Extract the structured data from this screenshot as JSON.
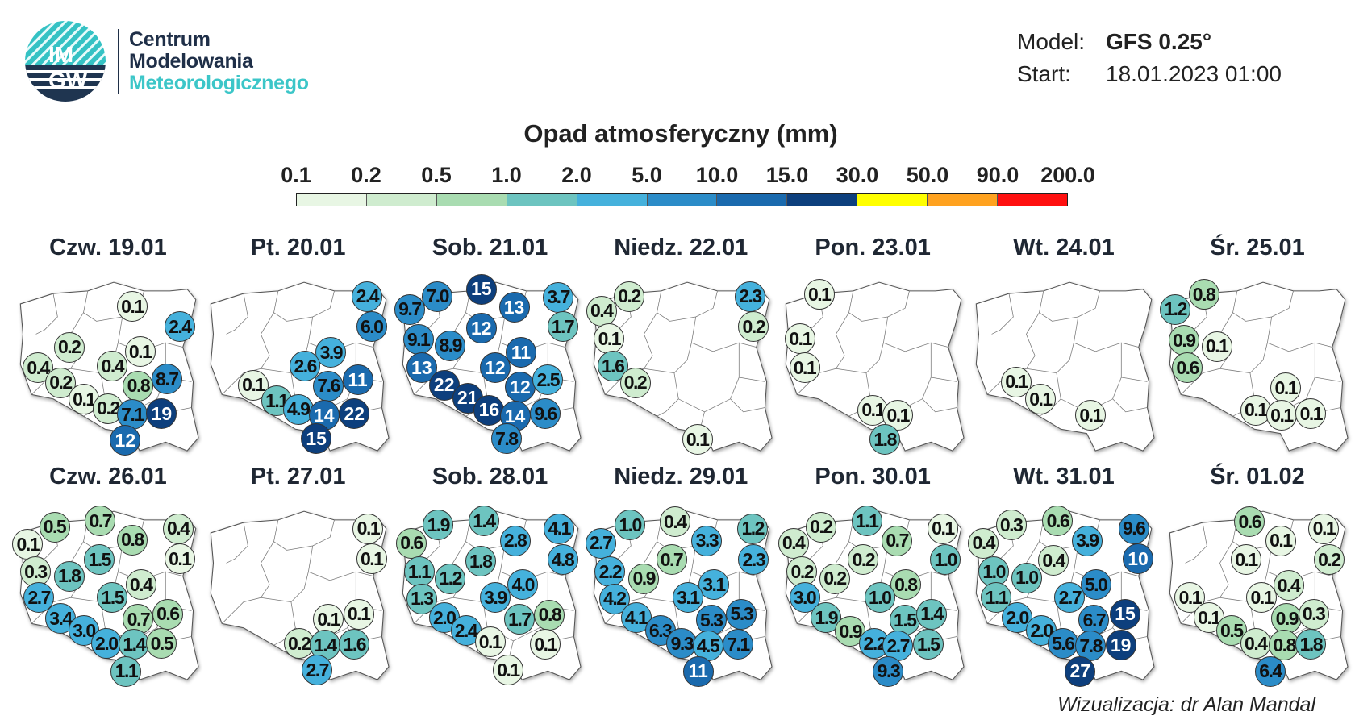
{
  "logo": {
    "text_top": "IM",
    "text_bottom": "GW"
  },
  "brand": {
    "line1": "Centrum",
    "line2": "Modelowania",
    "line3": "Meteorologicznego"
  },
  "meta": {
    "model_label": "Model:",
    "model_value": "GFS 0.25°",
    "start_label": "Start:",
    "start_value": "18.01.2023 01:00"
  },
  "title": "Opad atmosferyczny (mm)",
  "legend": {
    "labels": [
      "0.1",
      "0.2",
      "0.5",
      "1.0",
      "2.0",
      "5.0",
      "10.0",
      "15.0",
      "30.0",
      "50.0",
      "90.0",
      "200.0"
    ],
    "colors": [
      "#e8f6e4",
      "#cfeccf",
      "#a9dcb1",
      "#6dc4c0",
      "#45b1dc",
      "#2b8cc8",
      "#1a6aae",
      "#0d3f7d",
      "#ffff00",
      "#ffa21f",
      "#ff1010"
    ]
  },
  "maps": [
    {
      "title": "Czw. 19.01",
      "values": [
        "0.1",
        "2.4",
        "0.2",
        "0.1",
        "0.4",
        "0.4",
        "0.2",
        "0.8",
        "8.7",
        "0.1",
        "0.2",
        "7.1",
        "19",
        "12"
      ]
    },
    {
      "title": "Pt. 20.01",
      "values": [
        "2.4",
        "6.0",
        "3.9",
        "2.6",
        "7.6",
        "11",
        "0.1",
        "1.1",
        "4.9",
        "14",
        "22",
        "15"
      ]
    },
    {
      "title": "Sob. 21.01",
      "values": [
        "7.0",
        "15",
        "3.7",
        "9.7",
        "13",
        "1.7",
        "12",
        "9.1",
        "8.9",
        "11",
        "13",
        "12",
        "22",
        "12",
        "2.5",
        "21",
        "16",
        "14",
        "9.6",
        "7.8"
      ]
    },
    {
      "title": "Niedz. 22.01",
      "values": [
        "0.2",
        "2.3",
        "0.4",
        "0.2",
        "0.1",
        "1.6",
        "0.2",
        "0.1"
      ]
    },
    {
      "title": "Pon. 23.01",
      "values": [
        "0.1",
        "0.1",
        "0.1",
        "0.1",
        "0.1",
        "1.8"
      ]
    },
    {
      "title": "Wt. 24.01",
      "values": [
        "0.1",
        "0.1",
        "0.1"
      ]
    },
    {
      "title": "Śr. 25.01",
      "values": [
        "0.8",
        "1.2",
        "0.9",
        "0.1",
        "0.6",
        "0.1",
        "0.1",
        "0.1",
        "0.1"
      ]
    },
    {
      "title": "Czw. 26.01",
      "values": [
        "0.5",
        "0.7",
        "0.4",
        "0.1",
        "0.8",
        "0.1",
        "1.5",
        "0.3",
        "1.8",
        "0.4",
        "2.7",
        "1.5",
        "0.7",
        "0.6",
        "3.4",
        "3.0",
        "2.0",
        "1.4",
        "0.5",
        "1.1"
      ]
    },
    {
      "title": "Pt. 27.01",
      "values": [
        "0.1",
        "0.1",
        "0.1",
        "0.1",
        "0.2",
        "1.4",
        "1.6",
        "2.7"
      ]
    },
    {
      "title": "Sob. 28.01",
      "values": [
        "1.9",
        "1.4",
        "4.1",
        "0.6",
        "2.8",
        "4.8",
        "1.1",
        "1.2",
        "1.8",
        "4.0",
        "1.3",
        "3.9",
        "1.7",
        "0.8",
        "2.0",
        "2.4",
        "0.1",
        "0.1",
        "0.1"
      ]
    },
    {
      "title": "Niedz. 29.01",
      "values": [
        "1.0",
        "0.4",
        "3.3",
        "1.2",
        "2.7",
        "2.3",
        "0.7",
        "2.2",
        "0.9",
        "3.1",
        "3.1",
        "4.2",
        "4.1",
        "5.3",
        "5.3",
        "6.3",
        "9.3",
        "4.5",
        "7.1",
        "11"
      ]
    },
    {
      "title": "Pon. 30.01",
      "values": [
        "0.2",
        "1.1",
        "0.1",
        "0.4",
        "0.7",
        "1.0",
        "0.2",
        "0.2",
        "0.2",
        "0.8",
        "1.0",
        "3.0",
        "1.9",
        "1.5",
        "1.4",
        "0.9",
        "2.2",
        "2.7",
        "1.5",
        "9.3"
      ]
    },
    {
      "title": "Wt. 31.01",
      "values": [
        "0.3",
        "0.6",
        "9.6",
        "0.4",
        "3.9",
        "10",
        "0.4",
        "1.0",
        "1.0",
        "5.0",
        "2.7",
        "1.1",
        "2.0",
        "6.7",
        "15",
        "2.0",
        "5.6",
        "7.8",
        "19",
        "27"
      ]
    },
    {
      "title": "Śr. 01.02",
      "values": [
        "0.6",
        "0.1",
        "0.1",
        "0.1",
        "0.2",
        "0.4",
        "0.1",
        "0.1",
        "0.1",
        "0.9",
        "0.3",
        "0.5",
        "0.4",
        "0.8",
        "1.8",
        "6.4"
      ]
    }
  ],
  "footer": "Wizualizacja: dr Alan Mandal"
}
